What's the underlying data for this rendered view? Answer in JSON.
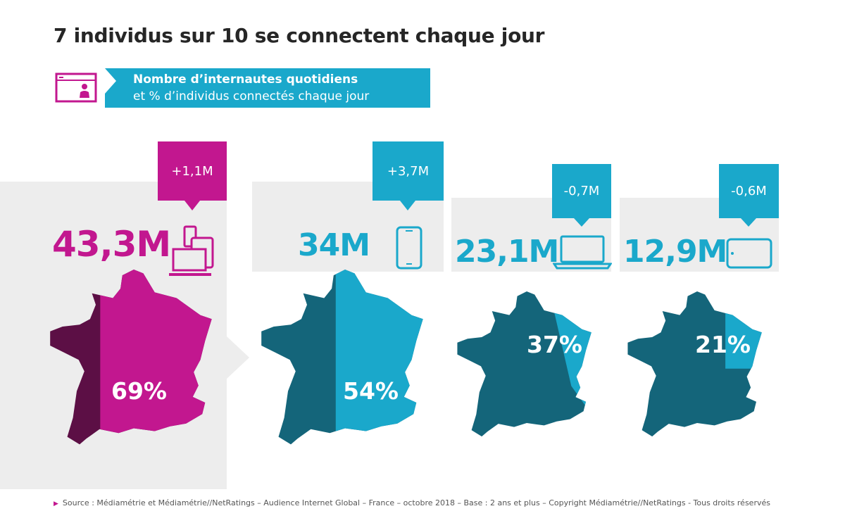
{
  "title": "7 individus sur 10 se connectent chaque jour",
  "subtitle": {
    "line1": "Nombre d’internautes quotidiens",
    "line2": "et % d’individus connectés chaque jour"
  },
  "colors": {
    "magenta": "#c2178f",
    "dark_magenta": "#5c0f45",
    "cyan": "#1aa8cb",
    "teal": "#14657a",
    "panel": "#ededed"
  },
  "chart_data": {
    "type": "table",
    "categories": [
      "Tous écrans",
      "Mobile",
      "Ordinateur",
      "Tablette"
    ],
    "series": [
      {
        "values": [
          "43,3M",
          "34M",
          "23,1M",
          "12,9M"
        ]
      },
      {
        "values": [
          "+1,1M",
          "+3,7M",
          "-0,7M",
          "-0,6M"
        ]
      },
      {
        "values": [
          "69%",
          "54%",
          "37%",
          "21%"
        ]
      }
    ],
    "percent_values": [
      69,
      54,
      37,
      21
    ],
    "icons": [
      "multi-device-icon",
      "smartphone-icon",
      "laptop-icon",
      "tablet-icon"
    ]
  },
  "source_label": "Source : Médiamétrie et Médiamétrie//NetRatings – Audience Internet Global – France – octobre 2018 – Base : 2 ans et plus – Copyright Médiamétrie//NetRatings - Tous droits réservés"
}
